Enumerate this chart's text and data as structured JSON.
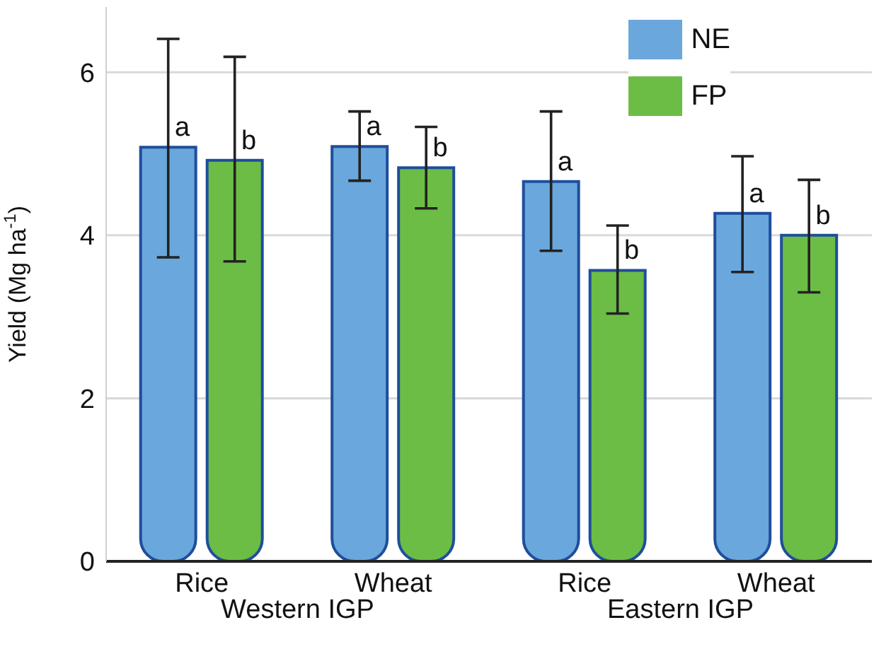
{
  "chart_data": {
    "type": "bar",
    "ylabel": "Yield (Mg ha$^{-1}$)",
    "categories": [
      "Rice",
      "Wheat",
      "Rice",
      "Wheat"
    ],
    "series": [
      {
        "name": "NE",
        "color": "#6aa7dc",
        "values": [
          5.08,
          5.09,
          4.66,
          4.27
        ],
        "errors": [
          [
            3.73,
            6.41
          ],
          [
            4.67,
            5.52
          ],
          [
            3.81,
            5.52
          ],
          [
            3.55,
            4.97
          ]
        ]
      },
      {
        "name": "FP",
        "color": "#6cbd45",
        "values": [
          4.92,
          4.83,
          3.57,
          4.0
        ],
        "errors": [
          [
            3.68,
            6.19
          ],
          [
            4.33,
            5.33
          ],
          [
            3.04,
            4.12
          ],
          [
            3.3,
            4.68
          ]
        ]
      }
    ],
    "annotations": [
      "a",
      "b",
      "a",
      "b",
      "a",
      "b",
      "a",
      "b",
      "Western IGP",
      "Eastern IGP"
    ],
    "ylim": [
      0,
      6.8
    ],
    "yticks": [
      0,
      2,
      4,
      6
    ],
    "grid": "y",
    "legend": "top right"
  }
}
